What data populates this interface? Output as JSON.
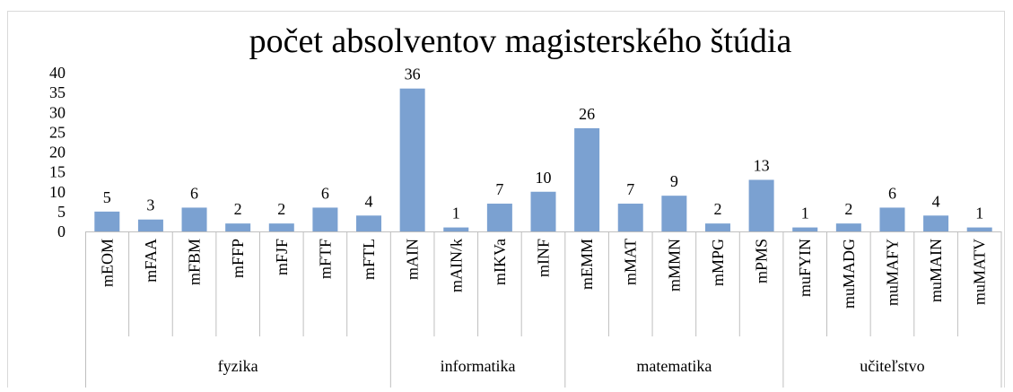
{
  "chart_data": {
    "type": "bar",
    "title": "počet absolventov magisterského štúdia",
    "color": "#7ba1d1",
    "ylim": [
      0,
      40
    ],
    "yticks": [
      0,
      5,
      10,
      15,
      20,
      25,
      30,
      35,
      40
    ],
    "groups": [
      {
        "name": "fyzika",
        "categories": [
          "mEOM",
          "mFAA",
          "mFBM",
          "mFFP",
          "mFJF",
          "mFTF",
          "mFTL"
        ],
        "values": [
          5,
          3,
          6,
          2,
          2,
          6,
          4
        ]
      },
      {
        "name": "informatika",
        "categories": [
          "mAIN",
          "mAIN/k",
          "mIKVa",
          "mINF"
        ],
        "values": [
          36,
          1,
          7,
          10
        ]
      },
      {
        "name": "matematika",
        "categories": [
          "mEMM",
          "mMAT",
          "mMMN",
          "mMPG",
          "mPMS"
        ],
        "values": [
          26,
          7,
          9,
          2,
          13
        ]
      },
      {
        "name": "učiteľstvo",
        "categories": [
          "muFYIN",
          "muMADG",
          "muMAFY",
          "muMAIN",
          "muMATV"
        ],
        "values": [
          1,
          2,
          6,
          4,
          1
        ]
      }
    ]
  }
}
